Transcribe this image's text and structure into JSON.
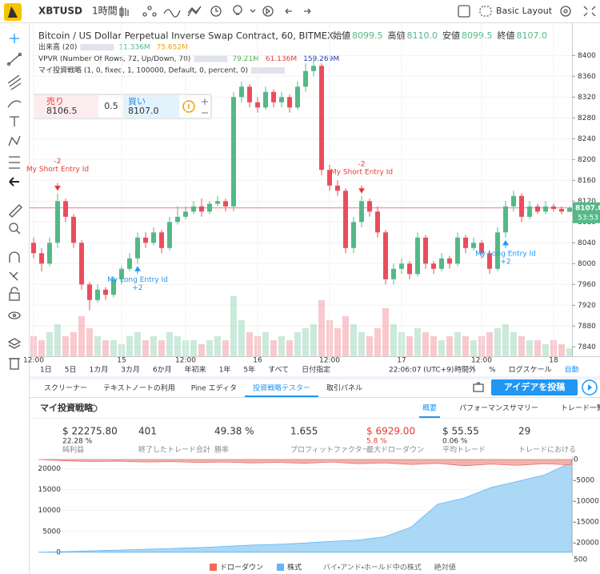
{
  "toolbar": {
    "symbol": "XBTUSD",
    "interval": "1時間",
    "layout": "Basic Layout"
  },
  "chart_data": {
    "type": "candlestick",
    "title": "Bitcoin / US Dollar Perpetual Inverse Swap Contract, 60, BITMEX",
    "ohlc_legend": [
      {
        "label": "始値",
        "value": "8099.5"
      },
      {
        "label": "高値",
        "value": "8110.0"
      },
      {
        "label": "安値",
        "value": "8099.5"
      },
      {
        "label": "終値",
        "value": "8107.0"
      }
    ],
    "indicators": [
      {
        "name": "出来高 (20)",
        "values": [
          "11.336M",
          "75.652M"
        ]
      },
      {
        "name": "VPVR (Number Of Rows, 72, Up/Down, 70)",
        "values": [
          "79.21M",
          "61.136M",
          "159.269M"
        ]
      },
      {
        "name": "マイ投資戦略 (1, 0, fixed, 1, 100000, Default, 0, percent, 0)",
        "values": []
      }
    ],
    "order_panel": {
      "sell_label": "売り",
      "sell_price": "8106.5",
      "quantity": "0.5",
      "buy_label": "買い",
      "buy_price": "8107.0"
    },
    "categories": [
      "12:00",
      null,
      null,
      null,
      null,
      null,
      null,
      null,
      null,
      null,
      null,
      "15",
      null,
      null,
      null,
      null,
      null,
      null,
      null,
      "12:00",
      null,
      null,
      null,
      null,
      null,
      null,
      null,
      null,
      "16",
      null,
      null,
      null,
      null,
      null,
      null,
      null,
      null,
      "12:00",
      null,
      null,
      null,
      null,
      null,
      null,
      null,
      null,
      "17",
      null,
      null,
      null,
      null,
      null,
      null,
      null,
      null,
      null,
      "12:00",
      null,
      null,
      null,
      null,
      null,
      null,
      null,
      null,
      "18",
      null,
      null
    ],
    "open": [
      8040,
      8020,
      8000,
      8040,
      8120,
      8090,
      8040,
      7960,
      7930,
      7950,
      7940,
      7970,
      7990,
      8010,
      8050,
      8040,
      8060,
      8030,
      8080,
      8090,
      8100,
      8110,
      8100,
      8115,
      8120,
      8110,
      8320,
      8340,
      8310,
      8300,
      8330,
      8310,
      8320,
      8300,
      8340,
      8370,
      8380,
      8180,
      8150,
      8140,
      8030,
      8080,
      8120,
      8100,
      8060,
      7970,
      7990,
      8000,
      7980,
      8050,
      8000,
      7990,
      8010,
      8000,
      8050,
      8030,
      8040,
      8020,
      7990,
      8060,
      8110,
      8130,
      8090,
      8110,
      8100,
      8110,
      8105,
      8099.5
    ],
    "high": [
      8050,
      8030,
      8050,
      8135,
      8125,
      8095,
      8045,
      7965,
      7960,
      7955,
      7975,
      7995,
      8020,
      8060,
      8060,
      8070,
      8065,
      8090,
      8110,
      8110,
      8120,
      8125,
      8120,
      8130,
      8125,
      8330,
      8350,
      8345,
      8320,
      8340,
      8335,
      8330,
      8325,
      8350,
      8385,
      8400,
      8385,
      8190,
      8160,
      8145,
      8090,
      8130,
      8125,
      8110,
      8065,
      8000,
      8010,
      8005,
      8060,
      8055,
      8005,
      8020,
      8015,
      8060,
      8055,
      8050,
      8045,
      8025,
      8070,
      8120,
      8140,
      8135,
      8120,
      8115,
      8120,
      8115,
      8110,
      8110
    ],
    "low": [
      8010,
      7985,
      7995,
      8030,
      8080,
      8030,
      7950,
      7910,
      7925,
      7930,
      7935,
      7960,
      7985,
      8000,
      8030,
      8035,
      8020,
      8025,
      8075,
      8085,
      8095,
      8090,
      8095,
      8110,
      8100,
      8100,
      8310,
      8300,
      8290,
      8295,
      8300,
      8300,
      8290,
      8295,
      8330,
      8360,
      8170,
      8140,
      8130,
      8020,
      8020,
      8070,
      8090,
      8050,
      7960,
      7960,
      7980,
      7970,
      7975,
      7990,
      7980,
      7985,
      7990,
      7995,
      8020,
      8025,
      8010,
      7980,
      7985,
      8050,
      8100,
      8080,
      8085,
      8095,
      8095,
      8100,
      8095,
      8099.5
    ],
    "close": [
      8020,
      8000,
      8040,
      8120,
      8090,
      8040,
      7960,
      7930,
      7950,
      7940,
      7970,
      7990,
      8010,
      8050,
      8040,
      8060,
      8030,
      8080,
      8090,
      8100,
      8110,
      8100,
      8115,
      8120,
      8110,
      8320,
      8340,
      8310,
      8300,
      8330,
      8310,
      8320,
      8300,
      8340,
      8370,
      8380,
      8180,
      8150,
      8140,
      8030,
      8080,
      8120,
      8100,
      8060,
      7970,
      7990,
      8000,
      7980,
      8050,
      8000,
      7990,
      8010,
      8000,
      8050,
      8030,
      8040,
      8020,
      7990,
      8060,
      8110,
      8130,
      8090,
      8110,
      8100,
      8110,
      8105,
      8100,
      8107
    ],
    "volume": [
      5,
      4,
      6,
      8,
      5,
      6,
      10,
      7,
      5,
      4,
      4,
      3,
      5,
      6,
      4,
      5,
      4,
      6,
      5,
      4,
      4,
      3,
      4,
      5,
      4,
      15,
      9,
      6,
      5,
      6,
      4,
      5,
      4,
      6,
      7,
      8,
      14,
      9,
      7,
      10,
      8,
      6,
      5,
      7,
      12,
      8,
      6,
      5,
      7,
      6,
      5,
      4,
      5,
      6,
      5,
      4,
      5,
      6,
      7,
      8,
      6,
      5,
      4,
      4,
      3,
      4,
      3,
      2
    ],
    "up_color": "#53b987",
    "down_color": "#eb4d5c",
    "ylim": [
      7822,
      8462
    ],
    "yticks": [
      7840,
      7880,
      7920,
      7960,
      8000,
      8040,
      8080,
      8120,
      8160,
      8200,
      8240,
      8280,
      8320,
      8360,
      8400
    ],
    "current_price": {
      "value": 8107,
      "label": "8107.0"
    },
    "countdown": "53:53",
    "annotations": [
      {
        "qty": "-2",
        "label": "My Short Entry Id"
      },
      {
        "label": "My Long Entry Id",
        "qty": "+2"
      },
      {
        "qty": "-2",
        "label": "My Short Entry Id"
      },
      {
        "label": "My Long Entry Id",
        "qty": "+2"
      }
    ]
  },
  "bottom_bar": {
    "ranges": [
      "1日",
      "5日",
      "1カ月",
      "3カ月",
      "6か月",
      "年初来",
      "1年",
      "5年",
      "すべて",
      "日付指定"
    ],
    "clock": "22:06:07 (UTC+9)",
    "options": [
      "時間外",
      "%",
      "ログスケール",
      "自動"
    ]
  },
  "panel_tabs": [
    "スクリーナー",
    "テキストノートの利用",
    "Pine エディタ",
    "投資戦略テスター",
    "取引パネル"
  ],
  "post_idea": "アイデアを投稿",
  "strategy": {
    "name": "マイ投資戦略",
    "tabs": [
      "概要",
      "パフォーマンスサマリー",
      "トレード一覧"
    ],
    "stats": [
      {
        "value": "$ 22275.80",
        "sub": "22.28 %",
        "label": "純利益"
      },
      {
        "value": "401",
        "label": "終了したトレード合計"
      },
      {
        "value": "49.38 %",
        "label": "勝率"
      },
      {
        "value": "1.655",
        "label": "プロフィットファクター"
      },
      {
        "value": "$ 6929.00",
        "sub": "5.8 %",
        "label": "最大ドローダウン"
      },
      {
        "value": "$ 55.55",
        "sub": "0.06 %",
        "label": "平均トレード"
      },
      {
        "value": "29",
        "label": "トレードにおける"
      }
    ]
  },
  "equity_chart": {
    "type": "area",
    "x": [
      0,
      20,
      40,
      60,
      80,
      100,
      120,
      140,
      160,
      180,
      200,
      220,
      240,
      260,
      280,
      300,
      320,
      340,
      360,
      380,
      400,
      401
    ],
    "series": [
      {
        "name": "株式",
        "color": "#aad8f5",
        "values": [
          0,
          150,
          350,
          500,
          700,
          900,
          1100,
          1400,
          1700,
          1900,
          2200,
          2600,
          2900,
          3700,
          6000,
          11500,
          13000,
          15500,
          17000,
          18500,
          21500,
          22275.8
        ]
      },
      {
        "name": "ドローダウン",
        "color": "#f2b3aa",
        "axis": "y2",
        "values": [
          0,
          -300,
          -500,
          -400,
          -600,
          -500,
          -700,
          -600,
          -800,
          -700,
          -900,
          -600,
          -1000,
          -800,
          -1200,
          -900,
          -1500,
          -1100,
          -1400,
          -1000,
          -1300,
          0
        ]
      }
    ],
    "xlim": [
      0,
      401
    ],
    "ylim": [
      -1000,
      23000
    ],
    "yticks": [
      0,
      5000,
      10000,
      15000,
      20000
    ],
    "y2lim": [
      -23270,
      770
    ],
    "y2ticks": [
      0,
      -5000,
      -10000,
      -15000,
      -20000
    ],
    "x_label": "500",
    "legend_extra": [
      "バイ・アンド・ホールド中の株式",
      "絶対値"
    ]
  }
}
